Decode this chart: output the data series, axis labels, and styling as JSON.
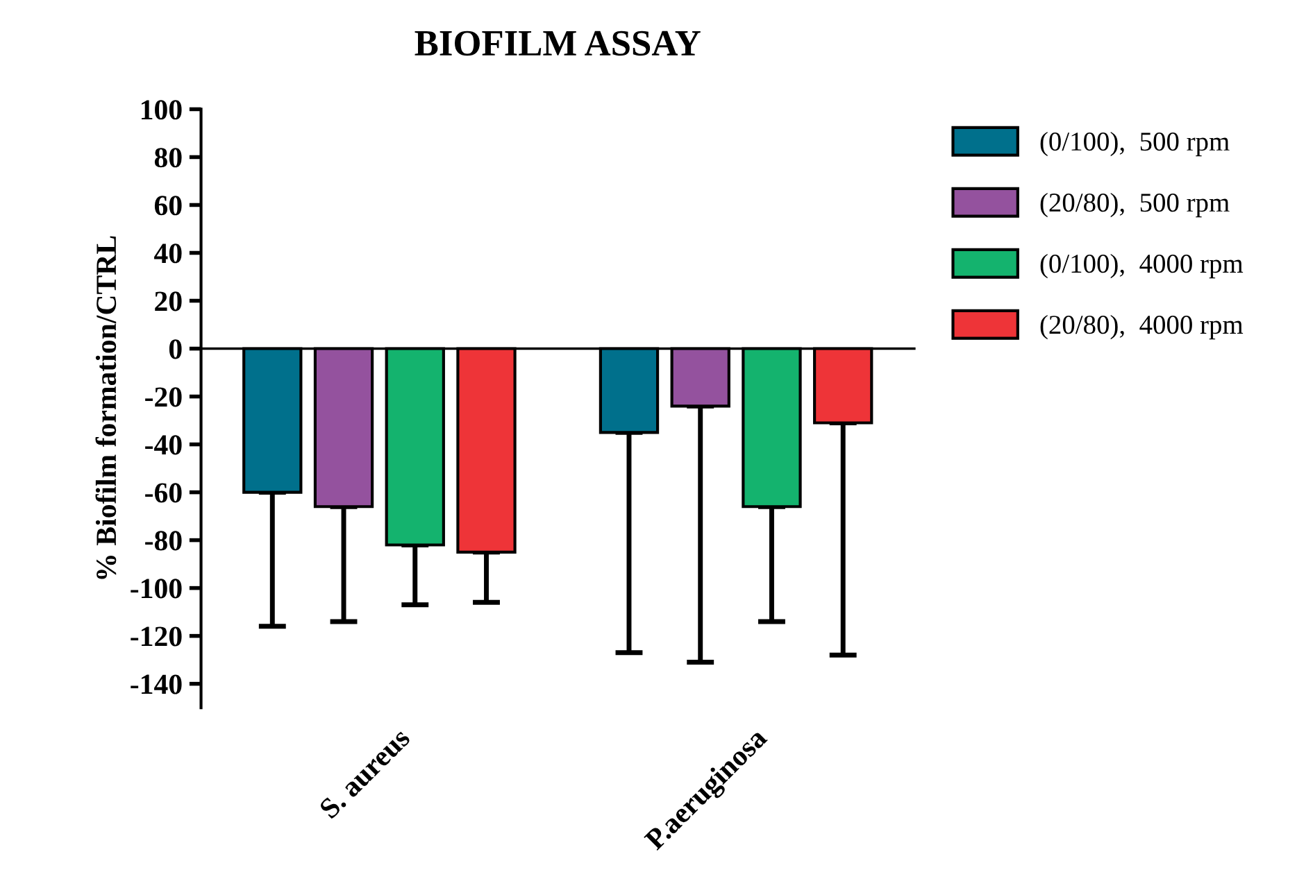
{
  "chart_data": {
    "type": "bar",
    "title": "BIOFILM ASSAY",
    "ylabel": "% Biofilm formation/CTRL",
    "categories": [
      "S. aureus",
      "P.aeruginosa"
    ],
    "series": [
      {
        "name": "(0/100),  500 rpm",
        "color": "#00708c",
        "values": [
          -60,
          -35
        ],
        "errors": [
          [
            -116,
            -60
          ],
          [
            -127,
            -35
          ]
        ]
      },
      {
        "name": "(20/80),  500 rpm",
        "color": "#94529e",
        "values": [
          -66,
          -24
        ],
        "errors": [
          [
            -114,
            -66
          ],
          [
            -131,
            -24
          ]
        ]
      },
      {
        "name": "(0/100),  4000 rpm",
        "color": "#14b36e",
        "values": [
          -82,
          -66
        ],
        "errors": [
          [
            -107,
            -82
          ],
          [
            -114,
            -66
          ]
        ]
      },
      {
        "name": "(20/80),  4000 rpm",
        "color": "#ee3438",
        "values": [
          -85,
          -31
        ],
        "errors": [
          [
            -106,
            -85
          ],
          [
            -128,
            -31
          ]
        ]
      }
    ],
    "ylim": [
      -150,
      100
    ],
    "yticks": [
      100,
      80,
      60,
      40,
      20,
      0,
      -20,
      -40,
      -60,
      -80,
      -100,
      -120,
      -140
    ],
    "legend": "top right"
  }
}
